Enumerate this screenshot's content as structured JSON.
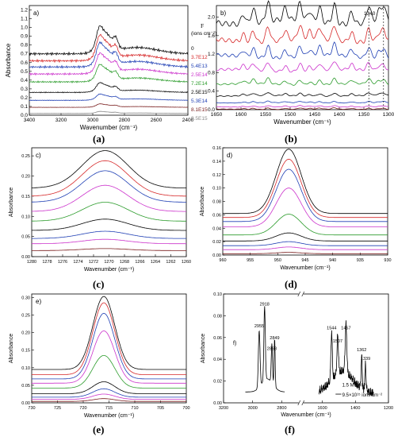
{
  "figure": {
    "captions": [
      "(a)",
      "(b)",
      "(c)",
      "(d)",
      "(e)",
      "(f)"
    ]
  },
  "chart_data": [
    {
      "id": "a",
      "type": "line",
      "panel_label": "a)",
      "xlabel": "Wavenumber (cm⁻¹)",
      "ylabel": "Absorbance",
      "xlim": [
        3400,
        2400
      ],
      "ylim": [
        0.0,
        1.25
      ],
      "xticks": [
        3400,
        3200,
        3000,
        2800,
        2600,
        2400
      ],
      "yticks": [
        0.0,
        0.1,
        0.2,
        0.3,
        0.4,
        0.5,
        0.6,
        0.7,
        0.8,
        0.9,
        1.0,
        1.1,
        1.2
      ],
      "legend_title": "F",
      "legend_unit": "(ions cm⁻²)",
      "legend_position": "right",
      "series": [
        {
          "name": "0",
          "color": "#000000",
          "baseline": 0.7,
          "peak": 0.4
        },
        {
          "name": "3.7E12",
          "color": "#d62728",
          "baseline": 0.62,
          "peak": 0.37
        },
        {
          "name": "5.4E13",
          "color": "#1f3fb4",
          "baseline": 0.55,
          "peak": 0.35
        },
        {
          "name": "2.5E14",
          "color": "#cc33cc",
          "baseline": 0.47,
          "peak": 0.3
        },
        {
          "name": "7.2E14",
          "color": "#2c9c2c",
          "baseline": 0.38,
          "peak": 0.25
        },
        {
          "name": "2.5E15",
          "color": "#000000",
          "baseline": 0.26,
          "peak": 0.14
        },
        {
          "name": "5.3E14",
          "color": "#1f3fb4",
          "baseline": 0.17,
          "peak": 0.09
        },
        {
          "name": "8.1E15",
          "color": "#7a1f1f",
          "baseline": 0.09,
          "peak": 0.05
        },
        {
          "name": "9.5E15",
          "color": "#888888",
          "baseline": 0.02,
          "peak": 0.03
        }
      ]
    },
    {
      "id": "b",
      "type": "line",
      "panel_label": "b)",
      "xlabel": "Wavenumber (cm⁻¹)",
      "ylabel": "",
      "xlim": [
        1650,
        1300
      ],
      "ylim": [
        0.0,
        2.25
      ],
      "xticks": [
        1650,
        1600,
        1550,
        1500,
        1450,
        1400,
        1350,
        1300
      ],
      "yticks": [
        0.0,
        0.4,
        0.8,
        1.2,
        1.6,
        2.0
      ],
      "annotations": [
        {
          "text": "1340",
          "x": 1340
        }
      ],
      "dashed_lines_x": [
        1340,
        1310
      ],
      "series_colors": [
        "#000000",
        "#d62728",
        "#1f3fb4",
        "#cc33cc",
        "#2c9c2c",
        "#000000",
        "#1f3fb4",
        "#cc33cc",
        "#7a1f1f"
      ],
      "baselines": [
        1.9,
        1.5,
        1.15,
        0.85,
        0.55,
        0.3,
        0.15,
        0.06,
        0.01
      ]
    },
    {
      "id": "c",
      "type": "line",
      "panel_label": "c)",
      "xlabel": "Wavenumber (cm⁻¹)",
      "ylabel": "Absorbance",
      "xlim": [
        1280,
        1260
      ],
      "ylim": [
        0.0,
        0.27
      ],
      "xticks": [
        1280,
        1278,
        1276,
        1274,
        1272,
        1270,
        1268,
        1266,
        1264,
        1262,
        1260
      ],
      "yticks": [
        0.0,
        0.05,
        0.1,
        0.15,
        0.2,
        0.25
      ],
      "peak_x": 1270.5,
      "series_colors": [
        "#000000",
        "#d62728",
        "#1f3fb4",
        "#cc33cc",
        "#2c9c2c",
        "#000000",
        "#1f3fb4",
        "#cc33cc",
        "#7a1f1f"
      ],
      "peaks": [
        0.263,
        0.238,
        0.213,
        0.177,
        0.135,
        0.093,
        0.063,
        0.043,
        0.02
      ],
      "edges": [
        0.17,
        0.15,
        0.135,
        0.112,
        0.088,
        0.065,
        0.045,
        0.032,
        0.015
      ]
    },
    {
      "id": "d",
      "type": "line",
      "panel_label": "d)",
      "xlabel": "Wavenumber (cm⁻¹)",
      "ylabel": "Absorbance",
      "xlim": [
        960,
        930
      ],
      "ylim": [
        0.0,
        0.16
      ],
      "xticks": [
        960,
        955,
        950,
        945,
        940,
        935,
        930
      ],
      "yticks": [
        0.0,
        0.02,
        0.04,
        0.06,
        0.08,
        0.1,
        0.12,
        0.14,
        0.16
      ],
      "peak_x": 948,
      "series_colors": [
        "#000000",
        "#d62728",
        "#1f3fb4",
        "#cc33cc",
        "#2c9c2c",
        "#000000",
        "#1f3fb4",
        "#cc33cc",
        "#7a1f1f"
      ],
      "peaks": [
        0.158,
        0.143,
        0.128,
        0.1,
        0.061,
        0.033,
        0.02,
        0.012,
        0.004
      ],
      "edges": [
        0.062,
        0.056,
        0.05,
        0.042,
        0.03,
        0.021,
        0.014,
        0.008,
        0.002
      ]
    },
    {
      "id": "e",
      "type": "line",
      "panel_label": "e)",
      "xlabel": "Wavenumber (cm⁻¹)",
      "ylabel": "Absorbance",
      "xlim": [
        730,
        700
      ],
      "ylim": [
        0.0,
        0.31
      ],
      "xticks": [
        730,
        725,
        720,
        715,
        710,
        705,
        700
      ],
      "yticks": [
        0.0,
        0.05,
        0.1,
        0.15,
        0.2,
        0.25,
        0.3
      ],
      "peak_x": 716,
      "series_colors": [
        "#000000",
        "#d62728",
        "#1f3fb4",
        "#cc33cc",
        "#2c9c2c",
        "#000000",
        "#1f3fb4",
        "#cc33cc",
        "#7a1f1f"
      ],
      "peaks": [
        0.303,
        0.285,
        0.255,
        0.205,
        0.135,
        0.06,
        0.04,
        0.025,
        0.012
      ],
      "edges": [
        0.095,
        0.08,
        0.068,
        0.056,
        0.042,
        0.026,
        0.016,
        0.01,
        0.004
      ]
    },
    {
      "id": "f",
      "type": "line",
      "panel_label": "f)",
      "xlabel": "Wavenumber (cm⁻¹)",
      "ylabel": "Absorbance",
      "ylim": [
        0.0,
        0.1
      ],
      "yticks": [
        0.0,
        0.02,
        0.04,
        0.06,
        0.08,
        0.1
      ],
      "xticks_left": [
        3200,
        3000,
        2800
      ],
      "xticks_right": [
        1600,
        1400,
        1200
      ],
      "peak_labels": [
        "2955",
        "2918",
        "2868",
        "2849",
        "1544",
        "1507",
        "1457",
        "1362",
        "1339"
      ],
      "legend_text_1": "1.5 MeV H⁺",
      "legend_text_2": "9.5×10¹⁵ ions cm⁻²",
      "legend_position": "bottom-right"
    }
  ]
}
